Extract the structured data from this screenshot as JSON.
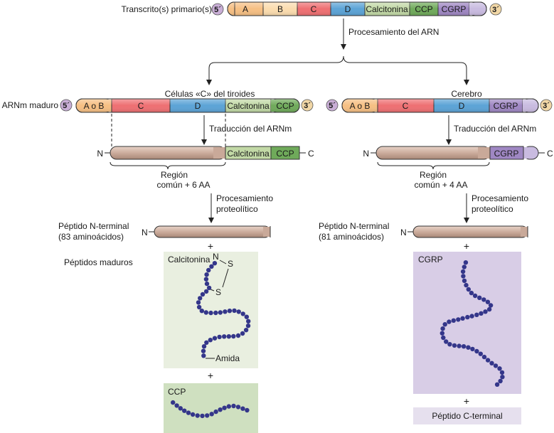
{
  "transcript": {
    "label": "Transcrito(s) primario(s)",
    "five": "5´",
    "three": "3´",
    "segments": [
      "A",
      "B",
      "C",
      "D",
      "Calcitonina",
      "CCP",
      "CGRP"
    ]
  },
  "rna_processing": "Procesamiento del ARN",
  "left": {
    "title": "Células «C» del tiroides",
    "mrna_label": "ARNm maduro",
    "mrna_segments": [
      "A o B",
      "C",
      "D",
      "Calcitonina",
      "CCP"
    ],
    "translation": "Traducción del ARNm",
    "protein_segments": [
      "Calcitonina",
      "CCP"
    ],
    "region_line1": "Región",
    "region_line2": "común + 6 AA",
    "proteolysis_line1": "Procesamiento",
    "proteolysis_line2": "proteolítico",
    "npeptide_line1": "Péptido N-terminal",
    "npeptide_line2": "(83 aminoácidos)",
    "plus": "+",
    "mature_peptides": "Péptidos maduros",
    "calcitonin_label": "Calcitonina",
    "n_label": "N",
    "s_label": "S",
    "amide_label": "Amida",
    "ccp_label": "CCP"
  },
  "right": {
    "title": "Cerebro",
    "mrna_segments": [
      "A o B",
      "C",
      "D",
      "CGRP"
    ],
    "translation": "Traducción del ARNm",
    "protein_segments": [
      "CGRP"
    ],
    "region_line1": "Región",
    "region_line2": "común + 4 AA",
    "proteolysis_line1": "Procesamiento",
    "proteolysis_line2": "proteolítico",
    "npeptide_line1": "Péptido N-terminal",
    "npeptide_line2": "(81 aminoácidos)",
    "plus": "+",
    "cgrp_label": "CGRP",
    "cterm_label": "Péptido C-terminal"
  },
  "terminal_n": "N",
  "terminal_c": "C",
  "colors": {
    "A": "#f6bf83",
    "B": "#fbdcae",
    "C": "#ee6f72",
    "D": "#5ba3d6",
    "Calcitonina": "#c2d9a6",
    "CCP": "#6faa5a",
    "CGRP": "#9f87c3",
    "cgrp_light": "#c9bbe0",
    "protein": "#c8a89a",
    "bead": "#34368a",
    "panel_green": "#e9efe0",
    "panel_ccp": "#cfe0c0",
    "panel_purple": "#d8cde6",
    "cterm_box": "#e6e0ee",
    "term_circle": "#c9aed6",
    "term_circle3": "#f1d7a6"
  }
}
